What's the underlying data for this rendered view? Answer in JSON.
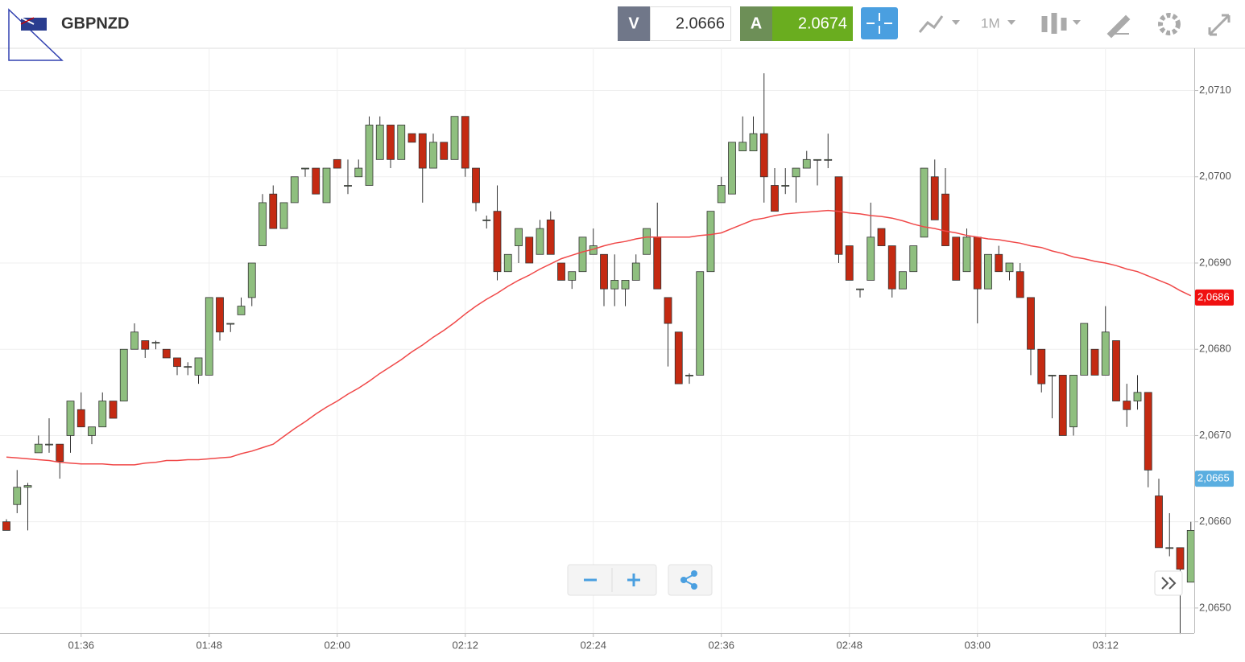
{
  "header": {
    "symbol": "GBPNZD",
    "sell_label": "V",
    "sell_price": "2.0666",
    "buy_label": "A",
    "buy_price": "2.0674",
    "timeframe": "1M"
  },
  "chart_data": {
    "type": "candlestick",
    "categories": [
      null,
      null,
      null,
      null,
      null,
      null,
      null,
      "01:36",
      null,
      null,
      null,
      null,
      null,
      null,
      null,
      null,
      null,
      null,
      null,
      "01:48",
      null,
      null,
      null,
      null,
      null,
      null,
      null,
      null,
      null,
      null,
      null,
      "02:00",
      null,
      null,
      null,
      null,
      null,
      null,
      null,
      null,
      null,
      null,
      null,
      "02:12",
      null,
      null,
      null,
      null,
      null,
      null,
      null,
      null,
      null,
      null,
      null,
      "02:24",
      null,
      null,
      null,
      null,
      null,
      null,
      null,
      null,
      null,
      null,
      null,
      "02:36",
      null,
      null,
      null,
      null,
      null,
      null,
      null,
      null,
      null,
      null,
      null,
      "02:48",
      null,
      null,
      null,
      null,
      null,
      null,
      null,
      null,
      null,
      null,
      null,
      "03:00",
      null,
      null,
      null,
      null,
      null,
      null,
      null,
      null,
      null,
      null,
      null,
      "03:12",
      null,
      null,
      null,
      null,
      null,
      null,
      null,
      null
    ],
    "ohlc": [
      [
        2.066,
        2.06603,
        2.0659,
        2.0659
      ],
      [
        2.0662,
        2.0666,
        2.0661,
        2.0664
      ],
      [
        2.0664,
        2.06645,
        2.0659,
        2.06642
      ],
      [
        2.0668,
        2.067,
        2.0668,
        2.0669
      ],
      [
        2.0669,
        2.0672,
        2.0668,
        2.0669
      ],
      [
        2.0669,
        2.0669,
        2.0665,
        2.0667
      ],
      [
        2.067,
        2.0674,
        2.0668,
        2.0674
      ],
      [
        2.0673,
        2.0675,
        2.0671,
        2.0671
      ],
      [
        2.067,
        2.0671,
        2.0669,
        2.0671
      ],
      [
        2.0671,
        2.0675,
        2.0671,
        2.0674
      ],
      [
        2.0674,
        2.0674,
        2.0672,
        2.0672
      ],
      [
        2.0674,
        2.068,
        2.0674,
        2.068
      ],
      [
        2.068,
        2.0683,
        2.068,
        2.0682
      ],
      [
        2.0681,
        2.0681,
        2.0679,
        2.068
      ],
      [
        2.06808,
        2.0681,
        2.068,
        2.06808
      ],
      [
        2.068,
        2.068,
        2.0679,
        2.0679
      ],
      [
        2.0679,
        2.0679,
        2.0677,
        2.0678
      ],
      [
        2.0678,
        2.06785,
        2.0677,
        2.0678
      ],
      [
        2.0677,
        2.0679,
        2.0676,
        2.0679
      ],
      [
        2.0677,
        2.0686,
        2.0677,
        2.0686
      ],
      [
        2.0686,
        2.0686,
        2.0681,
        2.0682
      ],
      [
        2.0683,
        2.0683,
        2.0682,
        2.0683
      ],
      [
        2.0684,
        2.0686,
        2.0684,
        2.0685
      ],
      [
        2.0686,
        2.069,
        2.0685,
        2.069
      ],
      [
        2.0692,
        2.0698,
        2.0692,
        2.0697
      ],
      [
        2.0698,
        2.0699,
        2.0694,
        2.0694
      ],
      [
        2.0694,
        2.0697,
        2.0694,
        2.0697
      ],
      [
        2.0697,
        2.07,
        2.0697,
        2.07
      ],
      [
        2.0701,
        2.0701,
        2.07,
        2.0701
      ],
      [
        2.0701,
        2.0701,
        2.0698,
        2.0698
      ],
      [
        2.0697,
        2.0701,
        2.0697,
        2.0701
      ],
      [
        2.0702,
        2.0702,
        2.0701,
        2.0701
      ],
      [
        2.0699,
        2.0702,
        2.0698,
        2.0699
      ],
      [
        2.07,
        2.0702,
        2.07,
        2.0701
      ],
      [
        2.0699,
        2.0707,
        2.0699,
        2.0706
      ],
      [
        2.0702,
        2.0707,
        2.0702,
        2.0706
      ],
      [
        2.0706,
        2.0706,
        2.0701,
        2.0702
      ],
      [
        2.0702,
        2.0706,
        2.0702,
        2.0706
      ],
      [
        2.0705,
        2.0705,
        2.0704,
        2.0704
      ],
      [
        2.0705,
        2.0705,
        2.0697,
        2.0701
      ],
      [
        2.0701,
        2.0705,
        2.0701,
        2.0704
      ],
      [
        2.0704,
        2.0704,
        2.0702,
        2.0702
      ],
      [
        2.0702,
        2.0707,
        2.0702,
        2.0707
      ],
      [
        2.0707,
        2.0707,
        2.07,
        2.0701
      ],
      [
        2.0701,
        2.0701,
        2.0696,
        2.0697
      ],
      [
        2.0695,
        2.06955,
        2.0694,
        2.0695
      ],
      [
        2.0696,
        2.0699,
        2.0688,
        2.0689
      ],
      [
        2.0689,
        2.0691,
        2.0689,
        2.0691
      ],
      [
        2.0692,
        2.0694,
        2.069,
        2.0694
      ],
      [
        2.0693,
        2.0693,
        2.069,
        2.069
      ],
      [
        2.0691,
        2.0695,
        2.0691,
        2.0694
      ],
      [
        2.0695,
        2.0696,
        2.0691,
        2.0691
      ],
      [
        2.069,
        2.069,
        2.0688,
        2.0688
      ],
      [
        2.0688,
        2.0689,
        2.0687,
        2.0689
      ],
      [
        2.0689,
        2.0693,
        2.0689,
        2.0693
      ],
      [
        2.0691,
        2.0694,
        2.0691,
        2.0692
      ],
      [
        2.0691,
        2.0691,
        2.0685,
        2.0687
      ],
      [
        2.0687,
        2.0691,
        2.0685,
        2.0688
      ],
      [
        2.0687,
        2.0688,
        2.0685,
        2.0688
      ],
      [
        2.0688,
        2.0691,
        2.0688,
        2.069
      ],
      [
        2.0691,
        2.0694,
        2.0691,
        2.0694
      ],
      [
        2.0693,
        2.0697,
        2.0687,
        2.0687
      ],
      [
        2.0686,
        2.0686,
        2.0678,
        2.0683
      ],
      [
        2.0682,
        2.0682,
        2.0676,
        2.0676
      ],
      [
        2.0677,
        2.06772,
        2.0676,
        2.0677
      ],
      [
        2.0677,
        2.0689,
        2.0677,
        2.0689
      ],
      [
        2.0689,
        2.0696,
        2.0689,
        2.0696
      ],
      [
        2.0697,
        2.07,
        2.0697,
        2.0699
      ],
      [
        2.0698,
        2.0704,
        2.0698,
        2.0704
      ],
      [
        2.0703,
        2.0707,
        2.0703,
        2.0704
      ],
      [
        2.0703,
        2.0707,
        2.0703,
        2.0705
      ],
      [
        2.0705,
        2.0712,
        2.0697,
        2.07
      ],
      [
        2.0699,
        2.0701,
        2.0696,
        2.0696
      ],
      [
        2.0699,
        2.0701,
        2.0698,
        2.0699
      ],
      [
        2.07,
        2.0701,
        2.0697,
        2.0701
      ],
      [
        2.0701,
        2.0703,
        2.0701,
        2.0702
      ],
      [
        2.0702,
        2.0702,
        2.0699,
        2.0702
      ],
      [
        2.0702,
        2.0705,
        2.0701,
        2.0702
      ],
      [
        2.07,
        2.07,
        2.069,
        2.0691
      ],
      [
        2.0692,
        2.0692,
        2.0688,
        2.0688
      ],
      [
        2.0687,
        2.0687,
        2.0686,
        2.0687
      ],
      [
        2.0688,
        2.0697,
        2.0688,
        2.0693
      ],
      [
        2.0694,
        2.0694,
        2.0692,
        2.0692
      ],
      [
        2.0692,
        2.0692,
        2.0686,
        2.0687
      ],
      [
        2.0687,
        2.0689,
        2.0687,
        2.0689
      ],
      [
        2.0689,
        2.0692,
        2.0689,
        2.0692
      ],
      [
        2.0693,
        2.0701,
        2.0693,
        2.0701
      ],
      [
        2.07,
        2.0702,
        2.0695,
        2.0695
      ],
      [
        2.0698,
        2.0701,
        2.0692,
        2.0692
      ],
      [
        2.0693,
        2.0693,
        2.0688,
        2.0688
      ],
      [
        2.0689,
        2.0694,
        2.0689,
        2.0693
      ],
      [
        2.0693,
        2.0693,
        2.0683,
        2.0687
      ],
      [
        2.0687,
        2.0691,
        2.0687,
        2.0691
      ],
      [
        2.0691,
        2.0692,
        2.0689,
        2.0689
      ],
      [
        2.0689,
        2.069,
        2.0688,
        2.069
      ],
      [
        2.0689,
        2.069,
        2.0686,
        2.0686
      ],
      [
        2.0686,
        2.0686,
        2.0677,
        2.068
      ],
      [
        2.068,
        2.068,
        2.0675,
        2.0676
      ],
      [
        2.0677,
        2.0677,
        2.0672,
        2.0677
      ],
      [
        2.0677,
        2.0677,
        2.067,
        2.067
      ],
      [
        2.0671,
        2.0677,
        2.067,
        2.0677
      ],
      [
        2.0677,
        2.0683,
        2.0677,
        2.0683
      ],
      [
        2.068,
        2.068,
        2.0677,
        2.0677
      ],
      [
        2.0677,
        2.0685,
        2.0677,
        2.0682
      ],
      [
        2.0681,
        2.0681,
        2.0674,
        2.0674
      ],
      [
        2.0674,
        2.0676,
        2.0671,
        2.0673
      ],
      [
        2.0674,
        2.0677,
        2.0673,
        2.0675
      ],
      [
        2.0675,
        2.0675,
        2.0664,
        2.0666
      ],
      [
        2.0663,
        2.0665,
        2.0657,
        2.0657
      ],
      [
        2.0657,
        2.0661,
        2.0656,
        2.0657
      ],
      [
        2.0657,
        2.0657,
        2.0647,
        2.06545
      ],
      [
        2.0653,
        2.066,
        2.0653,
        2.0659
      ]
    ],
    "moving_average": {
      "color": "#f04848",
      "values": [
        2.06675,
        2.06674,
        2.06673,
        2.06672,
        2.06671,
        2.06669,
        2.06668,
        2.06667,
        2.06667,
        2.06667,
        2.06666,
        2.06666,
        2.06666,
        2.06668,
        2.06669,
        2.06671,
        2.06671,
        2.06672,
        2.06672,
        2.06673,
        2.06674,
        2.06675,
        2.06679,
        2.06682,
        2.06686,
        2.0669,
        2.06699,
        2.06708,
        2.06716,
        2.06725,
        2.06733,
        2.0674,
        2.06748,
        2.06755,
        2.06763,
        2.06772,
        2.0678,
        2.06788,
        2.06797,
        2.06805,
        2.06814,
        2.06822,
        2.06831,
        2.06841,
        2.0685,
        2.06858,
        2.06865,
        2.06873,
        2.0688,
        2.06886,
        2.06893,
        2.06899,
        2.06905,
        2.06909,
        2.06913,
        2.06916,
        2.0692,
        2.06923,
        2.06925,
        2.06928,
        2.0693,
        2.0693,
        2.0693,
        2.0693,
        2.0693,
        2.06932,
        2.06933,
        2.06935,
        2.0694,
        2.06945,
        2.0695,
        2.06952,
        2.06955,
        2.06957,
        2.06958,
        2.06959,
        2.0696,
        2.06961,
        2.0696,
        2.06958,
        2.06957,
        2.06955,
        2.06954,
        2.06952,
        2.06949,
        2.06945,
        2.06942,
        2.0694,
        2.06937,
        2.06935,
        2.06932,
        2.0693,
        2.06928,
        2.06927,
        2.06925,
        2.06923,
        2.0692,
        2.06918,
        2.06914,
        2.06911,
        2.06907,
        2.06905,
        2.06902,
        2.069,
        2.06897,
        2.06893,
        2.0689,
        2.06885,
        2.0688,
        2.06875,
        2.06868,
        2.06862
      ]
    },
    "up_color": "#8fbf7f",
    "down_color": "#c42a12",
    "ylim": [
      2.06471,
      2.07149
    ],
    "yticks": [
      {
        "value": 2.065,
        "label": "2,0650"
      },
      {
        "value": 2.066,
        "label": "2,0660"
      },
      {
        "value": 2.067,
        "label": "2,0670"
      },
      {
        "value": 2.068,
        "label": "2,0680"
      },
      {
        "value": 2.069,
        "label": "2,0690"
      },
      {
        "value": 2.07,
        "label": "2,0700"
      },
      {
        "value": 2.071,
        "label": "2,0710"
      }
    ],
    "price_labels": [
      {
        "value": 2.0686,
        "label": "2,0686",
        "color": "#f01010"
      },
      {
        "value": 2.0665,
        "label": "2,0665",
        "color": "#5aaee0"
      }
    ],
    "grid": true
  }
}
